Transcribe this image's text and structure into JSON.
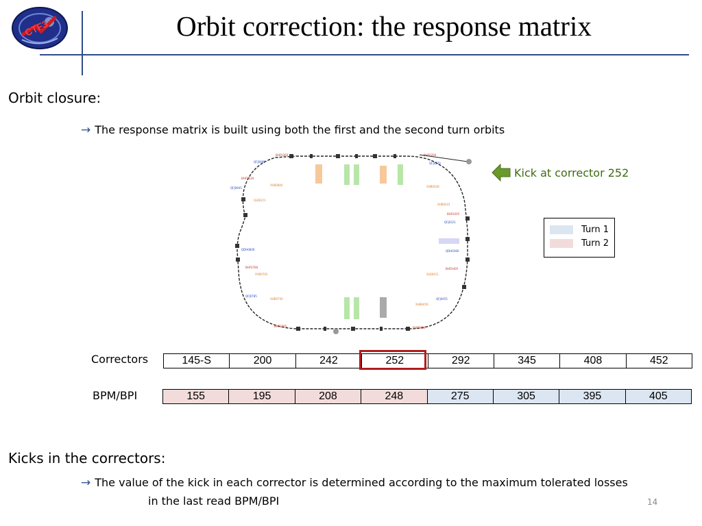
{
  "slide": {
    "title": "Orbit correction: the response matrix",
    "page_number": "14"
  },
  "logo": {
    "text": "CTF3"
  },
  "section1": {
    "heading": "Orbit closure:",
    "bullet_arrow": "→",
    "bullet": "The response matrix is built using both the  first and the second turn orbits"
  },
  "diagram": {
    "kick_label": "Kick at corrector 252",
    "kick_arrow_color": "#6a9a2a",
    "legend": [
      {
        "label": "Turn 1",
        "color": "#dce6f2"
      },
      {
        "label": "Turn 2",
        "color": "#f2dcdb"
      }
    ]
  },
  "correctors": {
    "label": "Correctors",
    "values": [
      "145-S",
      "200",
      "242",
      "252",
      "292",
      "345",
      "408",
      "452"
    ],
    "highlighted": "252",
    "highlight_color": "#b11c1c"
  },
  "bpms": {
    "label": "BPM/BPI",
    "values": [
      "155",
      "195",
      "208",
      "248",
      "275",
      "305",
      "395",
      "405"
    ],
    "turn": [
      "Turn 2",
      "Turn 2",
      "Turn 2",
      "Turn 2",
      "Turn 1",
      "Turn 1",
      "Turn 1",
      "Turn 1"
    ]
  },
  "section2": {
    "heading": "Kicks in the correctors:",
    "bullet_arrow": "→",
    "bullet_line1": "The value of the kick in each corrector is determined according to the maximum tolerated losses",
    "bullet_line2": "in the last read BPM/BPI"
  }
}
